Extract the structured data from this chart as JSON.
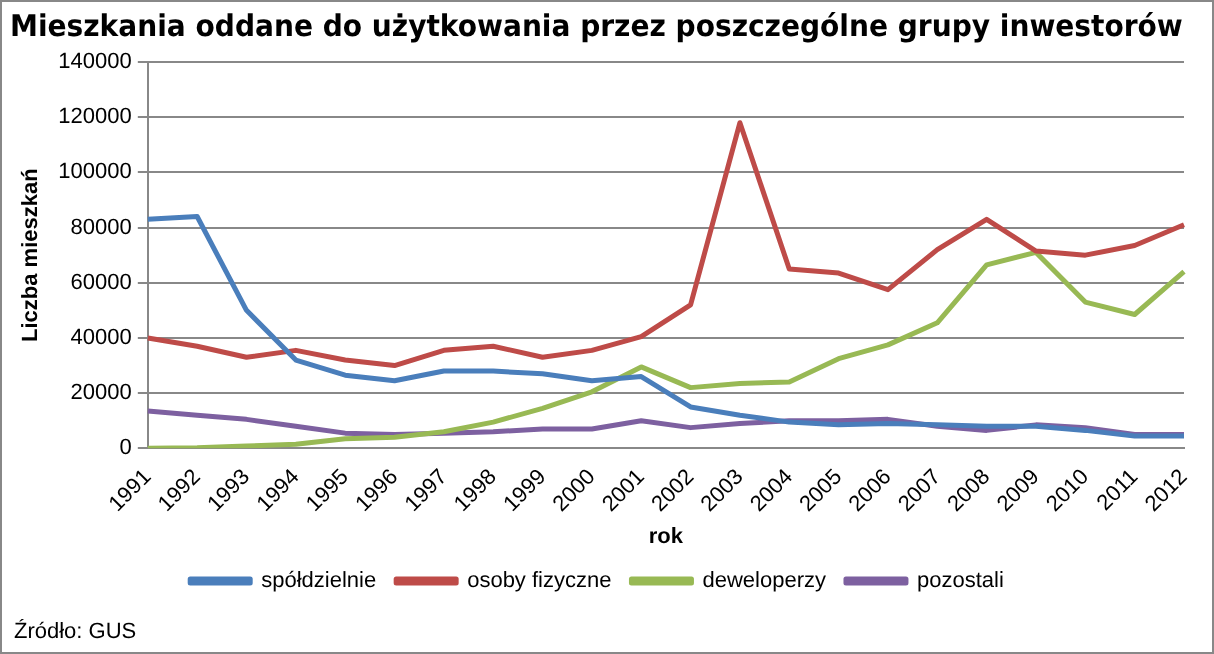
{
  "chart_data": {
    "type": "line",
    "title": "Mieszkania oddane do użytkowania przez poszczególne grupy inwestorów",
    "xlabel": "rok",
    "ylabel": "Liczba mieszkań",
    "categories": [
      "1991",
      "1992",
      "1993",
      "1994",
      "1995",
      "1996",
      "1997",
      "1998",
      "1999",
      "2000",
      "2001",
      "2002",
      "2003",
      "2004",
      "2005",
      "2006",
      "2007",
      "2008",
      "2009",
      "2010",
      "2011",
      "2012"
    ],
    "series": [
      {
        "name": "spółdzielnie",
        "color": "#4a7ebb",
        "values": [
          83000,
          84000,
          50000,
          32000,
          26500,
          24500,
          28000,
          28000,
          27000,
          24500,
          26000,
          15000,
          12000,
          9500,
          8500,
          9000,
          8500,
          8000,
          8000,
          6500,
          4500,
          4500
        ]
      },
      {
        "name": "osoby fizyczne",
        "color": "#be4b48",
        "values": [
          40000,
          37000,
          33000,
          35500,
          32000,
          30000,
          35500,
          37000,
          33000,
          35500,
          40500,
          52000,
          118000,
          65000,
          63500,
          57500,
          72000,
          83000,
          71500,
          70000,
          73500,
          81000
        ]
      },
      {
        "name": "deweloperzy",
        "color": "#98b954",
        "values": [
          0,
          200,
          800,
          1500,
          3500,
          4000,
          6000,
          9500,
          14500,
          20500,
          29500,
          22000,
          23500,
          24000,
          32500,
          37500,
          45500,
          66500,
          71000,
          53000,
          48500,
          64000
        ]
      },
      {
        "name": "pozostali",
        "color": "#7d60a0",
        "values": [
          13500,
          12000,
          10500,
          8000,
          5500,
          5000,
          5500,
          6000,
          7000,
          7000,
          10000,
          7500,
          9000,
          10000,
          10000,
          10500,
          8000,
          6500,
          8500,
          7500,
          5000,
          5000
        ]
      }
    ],
    "ylim": [
      0,
      140000
    ],
    "yticks": [
      0,
      20000,
      40000,
      60000,
      80000,
      100000,
      120000,
      140000
    ],
    "grid": "y",
    "legend": "bottom",
    "marker": "none",
    "line_style": "solid",
    "annotations": [
      "Źródło: GUS"
    ]
  }
}
